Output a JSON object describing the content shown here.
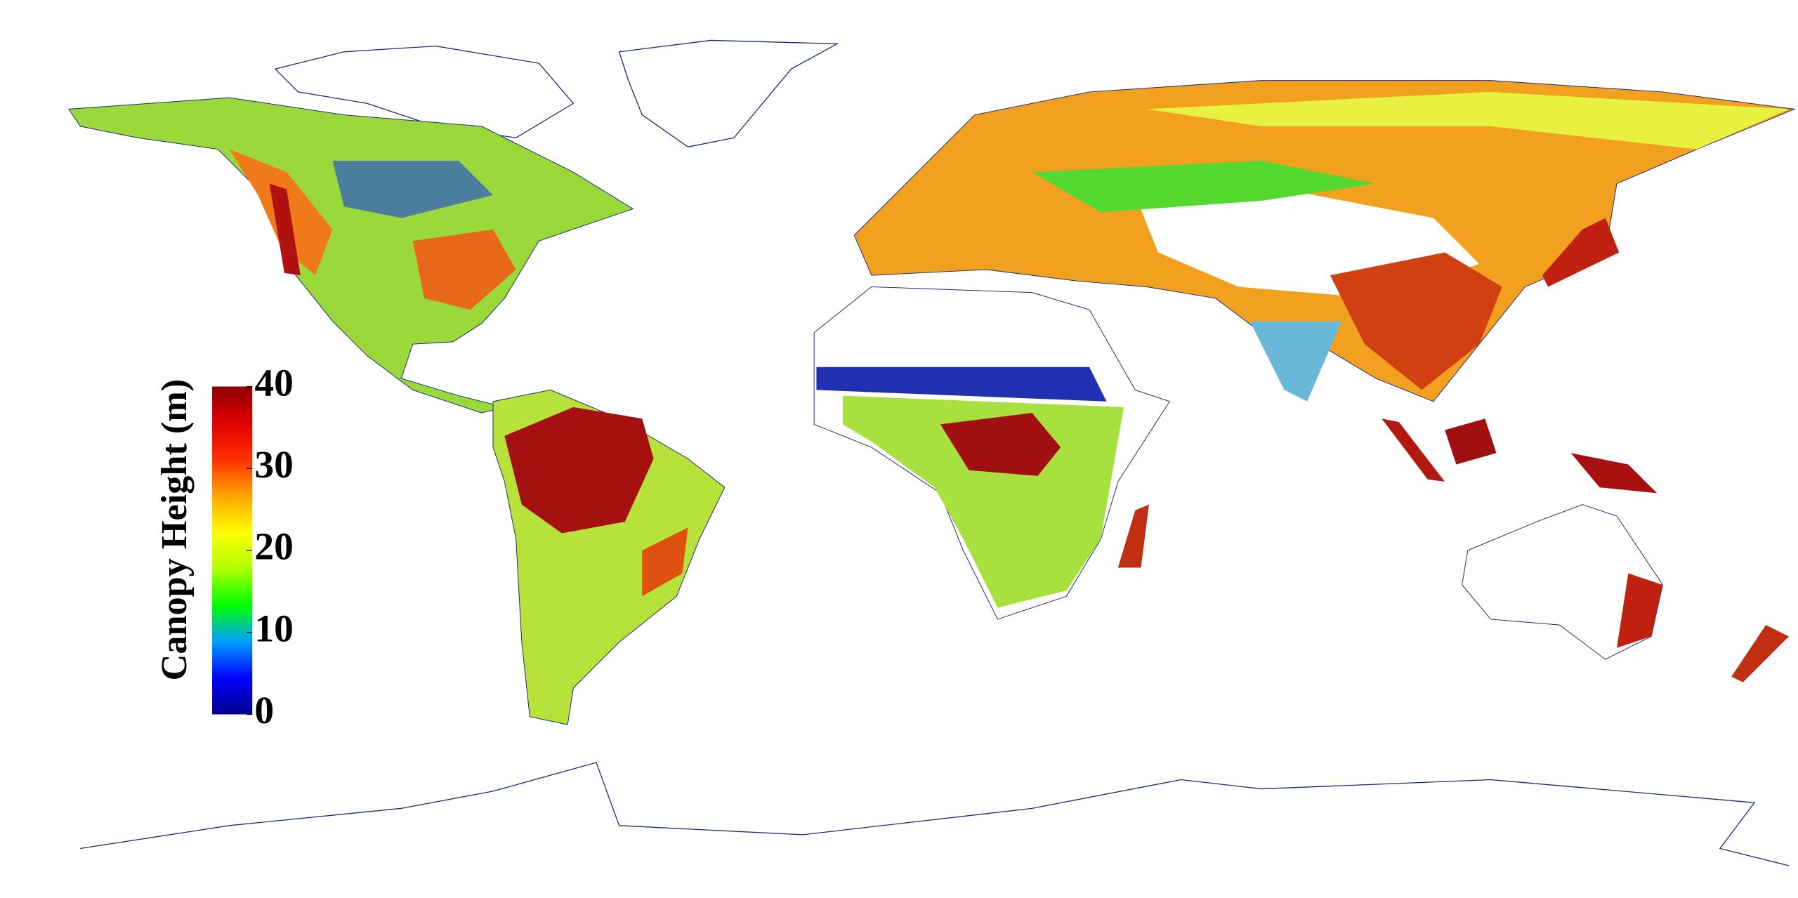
{
  "colorbar": {
    "title": "Canopy Height (m)",
    "lim": [
      0,
      40
    ],
    "ticks": [
      0,
      10,
      20,
      30,
      40
    ],
    "colors": [
      "#00008b",
      "#0000ff",
      "#00a0ff",
      "#00ff00",
      "#b0ff00",
      "#ffff00",
      "#ffa500",
      "#ff3000",
      "#e00000",
      "#8b0000"
    ]
  }
}
